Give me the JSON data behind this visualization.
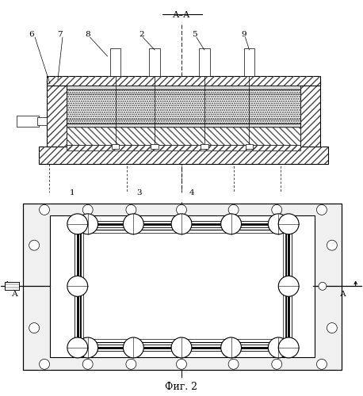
{
  "title_top": "А–А",
  "fig_label": "Фиг. 2",
  "bg_color": "#ffffff",
  "line_color": "#000000",
  "figsize": [
    4.58,
    5.0
  ],
  "dpi": 100
}
